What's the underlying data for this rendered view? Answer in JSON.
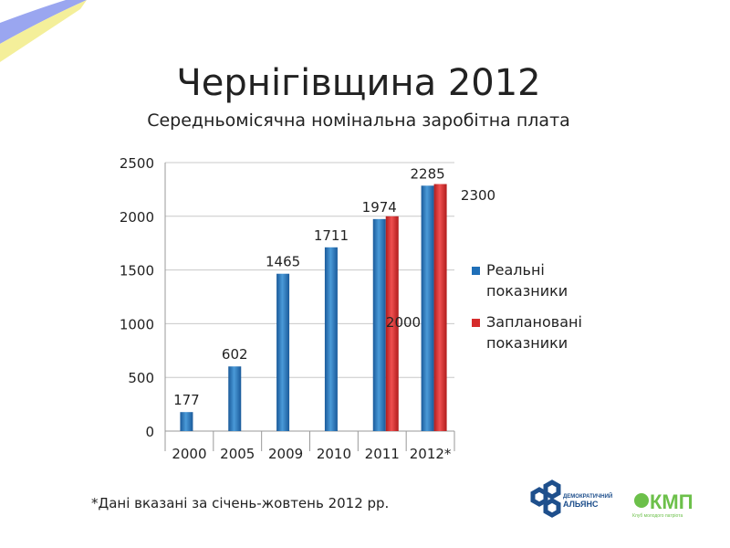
{
  "slide": {
    "title": "Чернігівщина 2012",
    "subtitle": "Середньомісячна номінальна заробітна плата",
    "footnote": "*Дані вказані за січень-жовтень 2012 рр.",
    "logos": [
      {
        "name": "Демократичний Альянс",
        "line1": "ДЕМОКРАТИЧНИЙ",
        "line2": "АЛЬЯНС",
        "color": "#1e4f8c"
      },
      {
        "name": "КМП",
        "text": "КМП",
        "caption": "Клуб молодого патріота",
        "color": "#6cc04a"
      }
    ],
    "flag_colors": [
      "#9aa6f0",
      "#f4ef9a"
    ]
  },
  "chart_data": {
    "type": "bar",
    "title": "Середньомісячна номінальна заробітна плата",
    "xlabel": "",
    "ylabel": "",
    "ylim": [
      0,
      2500
    ],
    "yticks": [
      0,
      500,
      1000,
      1500,
      2000,
      2500
    ],
    "categories": [
      "2000",
      "2005",
      "2009",
      "2010",
      "2011",
      "2012*"
    ],
    "series": [
      {
        "name": "Реальні показники",
        "legend_lines": [
          "Реальні",
          "показники"
        ],
        "color": "#1f6fb8",
        "values": [
          177,
          602,
          1465,
          1711,
          1974,
          2285
        ],
        "labels": [
          "177",
          "602",
          "1465",
          "1711",
          "1974",
          "2285"
        ]
      },
      {
        "name": "Заплановані показники",
        "legend_lines": [
          "Заплановані",
          "показники"
        ],
        "color": "#d62c2c",
        "values": [
          null,
          null,
          null,
          null,
          2000,
          2300
        ],
        "labels": [
          "",
          "",
          "",
          "",
          "2000",
          "2300"
        ]
      }
    ],
    "legend": "right",
    "grid": true
  }
}
